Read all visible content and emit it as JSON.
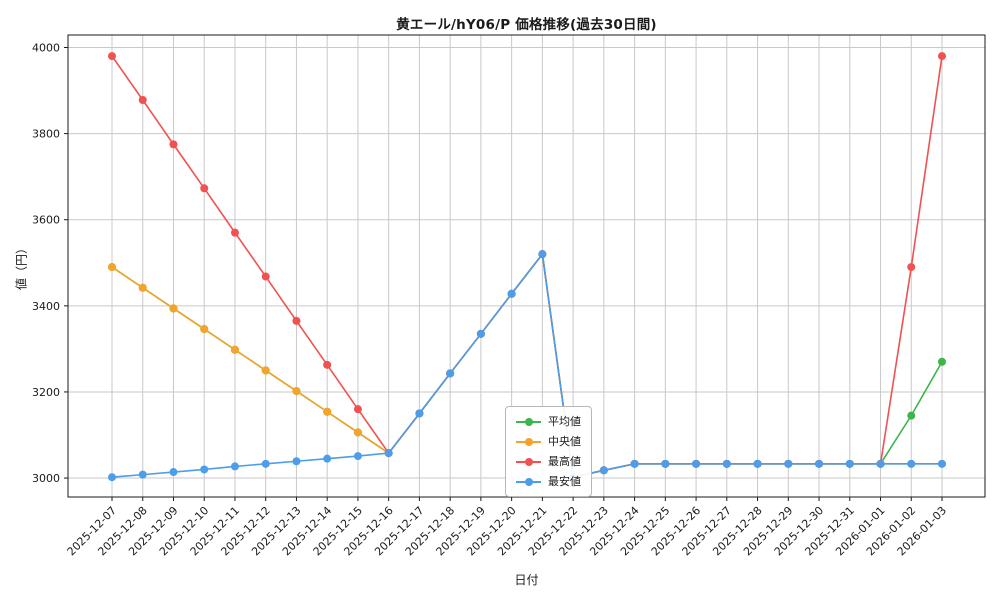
{
  "chart_data": {
    "type": "line",
    "title": "黄エール/hY06/P 価格推移(過去30日間)",
    "xlabel": "日付",
    "ylabel": "値（円）",
    "ylim": [
      2956,
      4029
    ],
    "yticks": [
      3000,
      3200,
      3400,
      3600,
      3800,
      4000
    ],
    "grid": true,
    "legend_position": "inside-bottom-center",
    "marker": "circle",
    "x": [
      "2025-12-07",
      "2025-12-08",
      "2025-12-09",
      "2025-12-10",
      "2025-12-11",
      "2025-12-12",
      "2025-12-13",
      "2025-12-14",
      "2025-12-15",
      "2025-12-16",
      "2025-12-17",
      "2025-12-18",
      "2025-12-19",
      "2025-12-20",
      "2025-12-21",
      "2025-12-22",
      "2025-12-23",
      "2025-12-24",
      "2025-12-25",
      "2025-12-26",
      "2025-12-27",
      "2025-12-28",
      "2025-12-29",
      "2025-12-30",
      "2025-12-31",
      "2026-01-01",
      "2026-01-02",
      "2026-01-03"
    ],
    "series": [
      {
        "key": "mean",
        "name": "平均値",
        "color": "#3cb54a",
        "values": [
          3490,
          3442,
          3394,
          3346,
          3298,
          3250,
          3202,
          3154,
          3106,
          3058,
          3150,
          3243,
          3335,
          3428,
          3520,
          3002,
          3018,
          3033,
          3033,
          3033,
          3033,
          3033,
          3033,
          3033,
          3033,
          3033,
          3145,
          3270
        ]
      },
      {
        "key": "median",
        "name": "中央値",
        "color": "#f5a32a",
        "values": [
          3490,
          3442,
          3394,
          3346,
          3298,
          3250,
          3202,
          3154,
          3106,
          3058,
          3150,
          3243,
          3335,
          3428,
          3520,
          3002,
          3018,
          3033,
          3033,
          3033,
          3033,
          3033,
          3033,
          3033,
          3033,
          3033,
          3033,
          3033
        ]
      },
      {
        "key": "max",
        "name": "最高値",
        "color": "#f15151",
        "values": [
          3980,
          3878,
          3775,
          3673,
          3570,
          3468,
          3365,
          3263,
          3160,
          3058,
          3150,
          3243,
          3335,
          3428,
          3520,
          3002,
          3018,
          3033,
          3033,
          3033,
          3033,
          3033,
          3033,
          3033,
          3033,
          3033,
          3490,
          3980
        ]
      },
      {
        "key": "min",
        "name": "最安値",
        "color": "#4d9de8",
        "values": [
          3002,
          3008,
          3014,
          3020,
          3027,
          3033,
          3039,
          3045,
          3051,
          3058,
          3150,
          3243,
          3335,
          3428,
          3520,
          3002,
          3018,
          3033,
          3033,
          3033,
          3033,
          3033,
          3033,
          3033,
          3033,
          3033,
          3033,
          3033
        ]
      }
    ]
  }
}
